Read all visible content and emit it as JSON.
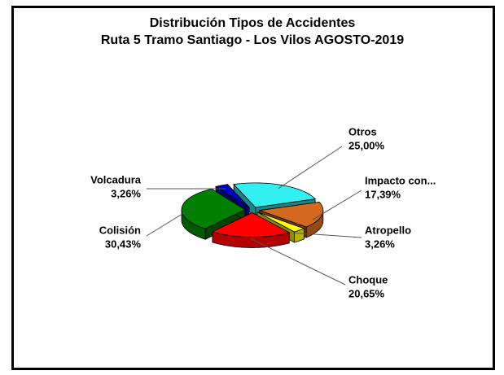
{
  "chart_data": {
    "type": "pie",
    "title": "Distribución Tipos de Accidentes",
    "subtitle": "Ruta 5 Tramo Santiago - Los Vilos AGOSTO-2019",
    "categories": [
      "Otros",
      "Impacto  con...",
      "Atropello",
      "Choque",
      "Colisión",
      "Volcadura"
    ],
    "values": [
      25.0,
      17.39,
      3.26,
      20.65,
      30.43,
      3.26
    ],
    "value_labels": [
      "25,00%",
      "17,39%",
      "3,26%",
      "20,65%",
      "30,43%",
      "3,26%"
    ],
    "colors": [
      "#33f0f0",
      "#d2691e",
      "#ffff00",
      "#ff0000",
      "#008000",
      "#0000cc"
    ]
  }
}
